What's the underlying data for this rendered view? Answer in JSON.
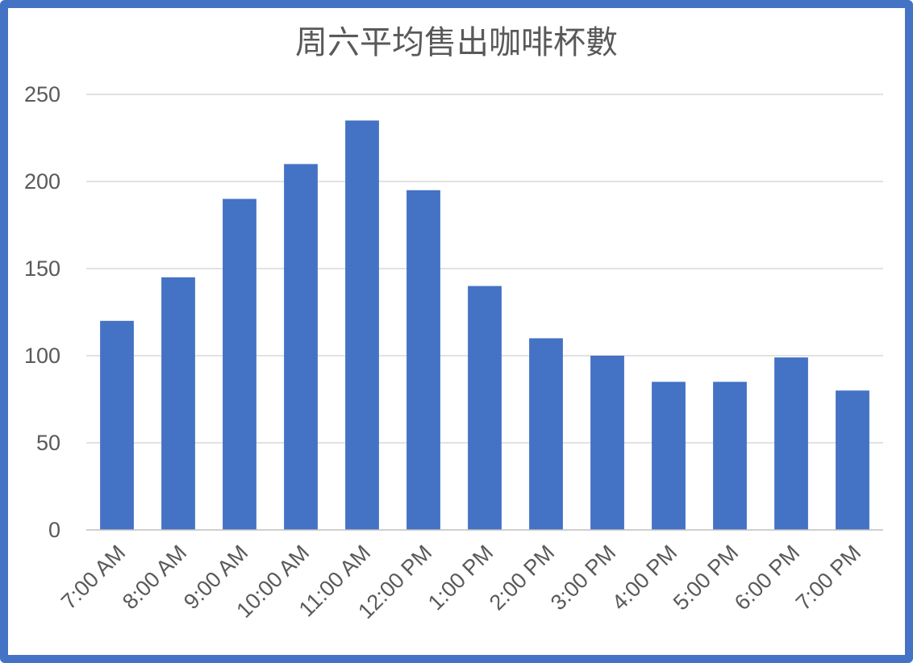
{
  "chart_data": {
    "type": "bar",
    "title": "周六平均售出咖啡杯數",
    "xlabel": "",
    "ylabel": "",
    "categories": [
      "7:00 AM",
      "8:00 AM",
      "9:00 AM",
      "10:00 AM",
      "11:00 AM",
      "12:00 PM",
      "1:00 PM",
      "2:00 PM",
      "3:00 PM",
      "4:00 PM",
      "5:00 PM",
      "6:00 PM",
      "7:00 PM"
    ],
    "values": [
      120,
      145,
      190,
      210,
      235,
      195,
      140,
      110,
      100,
      85,
      85,
      99,
      80
    ],
    "ylim": [
      0,
      250
    ],
    "yticks": [
      0,
      50,
      100,
      150,
      200,
      250
    ],
    "grid": true,
    "legend": "none",
    "bar_color": "#4472C4",
    "frame_color": "#4472C4"
  }
}
